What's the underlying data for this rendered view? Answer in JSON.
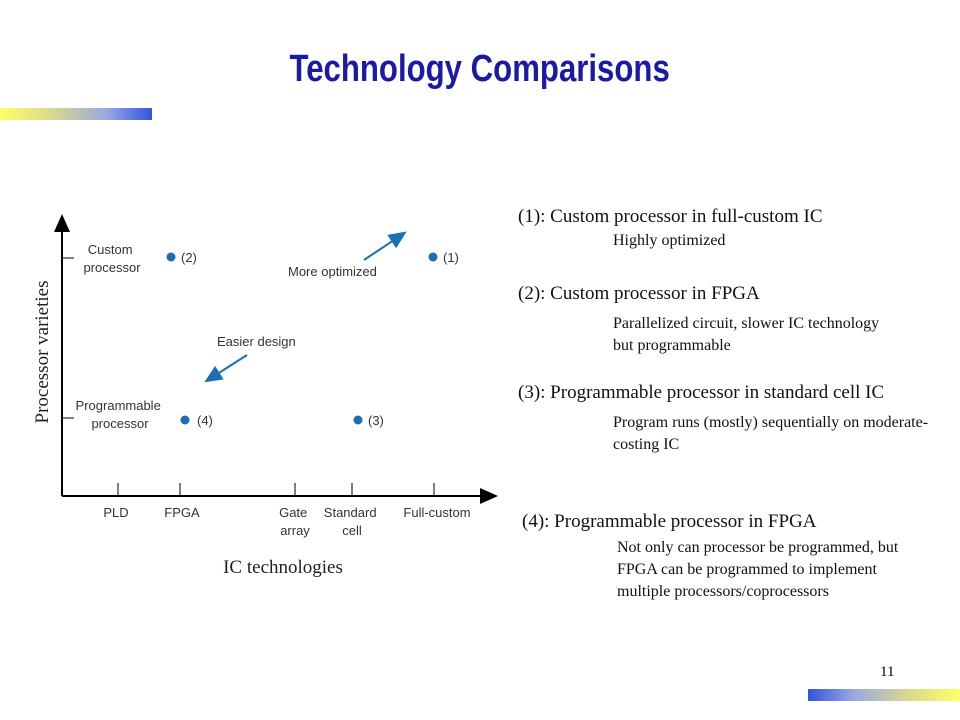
{
  "slide": {
    "title": "Technology Comparisons",
    "page_number": "11"
  },
  "diagram": {
    "y_axis_label": "Processor varieties",
    "x_axis_label": "IC technologies",
    "y_categories": [
      "Custom processor",
      "Programmable processor"
    ],
    "x_categories": [
      "PLD",
      "FPGA",
      "Gate array",
      "Standard cell",
      "Full-custom"
    ],
    "points": [
      {
        "label": "(2)",
        "x": "FPGA",
        "y": "Custom processor"
      },
      {
        "label": "(1)",
        "x": "Full-custom",
        "y": "Custom processor"
      },
      {
        "label": "(4)",
        "x": "FPGA",
        "y": "Programmable processor"
      },
      {
        "label": "(3)",
        "x": "Standard cell",
        "y": "Programmable processor"
      }
    ],
    "arrows": [
      {
        "label": "More optimized",
        "direction": "up-right"
      },
      {
        "label": "Easier design",
        "direction": "down-left"
      }
    ],
    "point_color": "#1a6fb5",
    "arrow_color": "#1a6fb5"
  },
  "descriptions": [
    {
      "head": "(1): Custom processor in full-custom IC",
      "sub": "Highly optimized"
    },
    {
      "head": "(2): Custom processor in FPGA",
      "sub": "Parallelized circuit, slower IC technology but programmable"
    },
    {
      "head": "(3): Programmable processor in standard cell IC",
      "sub": "Program runs (mostly) sequentially on moderate-costing IC"
    },
    {
      "head": "(4): Programmable processor in FPGA",
      "sub": "Not only can processor be programmed, but FPGA can be programmed to implement multiple processors/coprocessors"
    }
  ]
}
